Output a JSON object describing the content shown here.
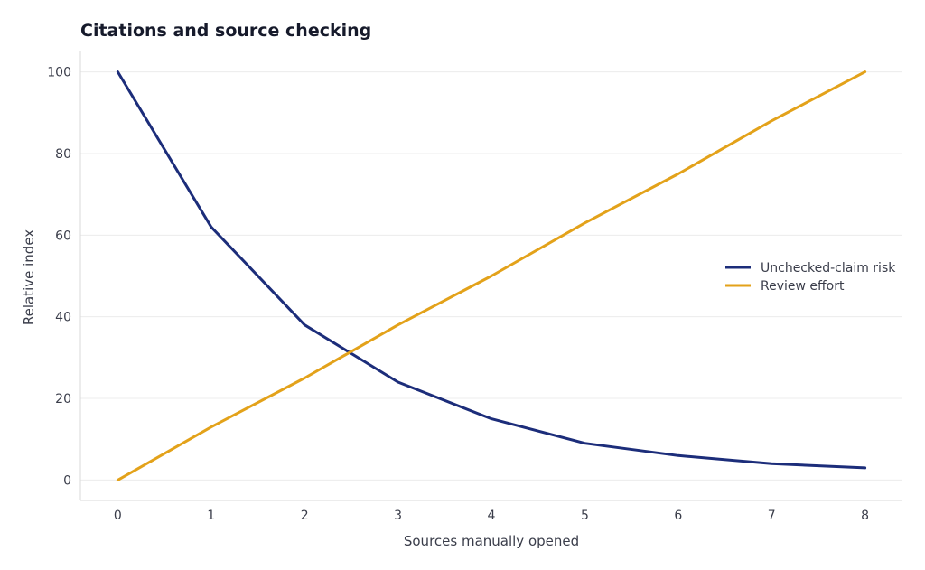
{
  "chart_data": {
    "type": "line",
    "title": "Citations and source checking",
    "xlabel": "Sources manually opened",
    "ylabel": "Relative index",
    "x": [
      0,
      1,
      2,
      3,
      4,
      5,
      6,
      7,
      8
    ],
    "xlim": [
      -0.4,
      8.4
    ],
    "ylim": [
      -5,
      105
    ],
    "xticks": [
      0,
      1,
      2,
      3,
      4,
      5,
      6,
      7,
      8
    ],
    "yticks": [
      0,
      20,
      40,
      60,
      80,
      100
    ],
    "grid": true,
    "legend_position": "right",
    "series": [
      {
        "name": "Unchecked-claim risk",
        "color": "#1c2d7a",
        "values": [
          100,
          62,
          38,
          24,
          15,
          9,
          6,
          4,
          3
        ]
      },
      {
        "name": "Review effort",
        "color": "#e3a21a",
        "values": [
          0,
          13,
          25,
          38,
          50,
          63,
          75,
          88,
          100
        ]
      }
    ]
  }
}
